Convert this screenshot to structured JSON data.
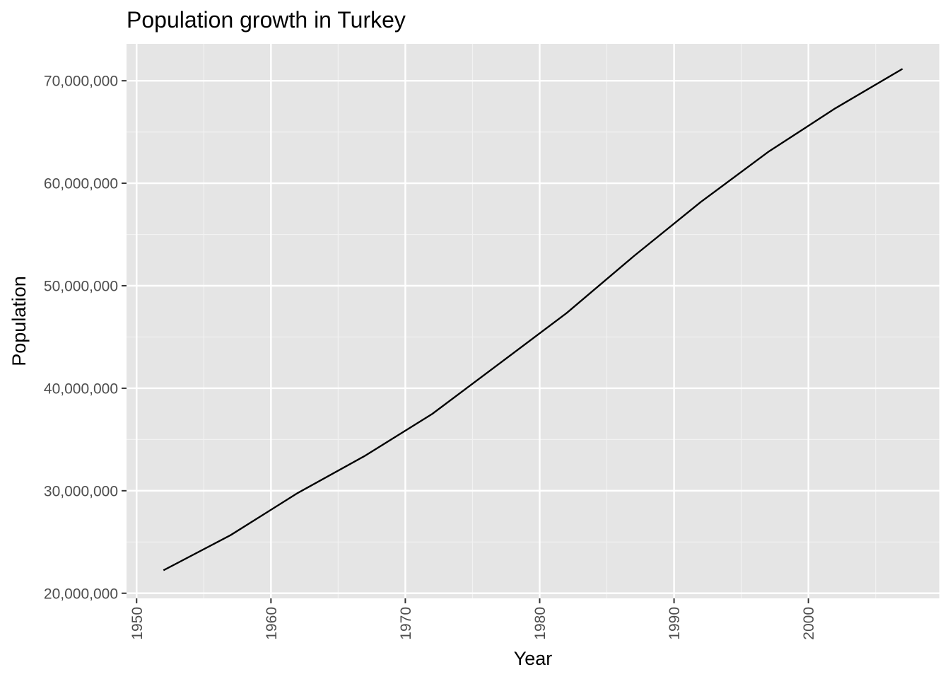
{
  "chart_data": {
    "type": "line",
    "title": "Population growth in Turkey",
    "xlabel": "Year",
    "ylabel": "Population",
    "xlim": [
      1952,
      2007
    ],
    "ylim": [
      20000000,
      73000000
    ],
    "x_ticks": [
      1950,
      1960,
      1970,
      1980,
      1990,
      2000
    ],
    "x_tick_labels": [
      "1950",
      "1960",
      "1970",
      "1980",
      "1990",
      "2000"
    ],
    "y_ticks": [
      20000000,
      30000000,
      40000000,
      50000000,
      60000000,
      70000000
    ],
    "y_tick_labels": [
      "20,000,000",
      "30,000,000",
      "40,000,000",
      "50,000,000",
      "60,000,000",
      "70,000,000"
    ],
    "grid": true,
    "series": [
      {
        "x": [
          1952,
          1957,
          1962,
          1967,
          1972,
          1977,
          1982,
          1987,
          1992,
          1997,
          2002,
          2007
        ],
        "y": [
          22235677,
          25670939,
          29788695,
          33411317,
          37492953,
          42404033,
          47328791,
          52881328,
          58179144,
          63047647,
          67308928,
          71158647
        ],
        "color": "#000000"
      }
    ],
    "colors": {
      "panel_background": "#e5e5e5",
      "grid_major": "#ffffff",
      "grid_minor": "#f2f2f2",
      "tick_label": "#4d4d4d",
      "axis_tick": "#333333"
    }
  }
}
